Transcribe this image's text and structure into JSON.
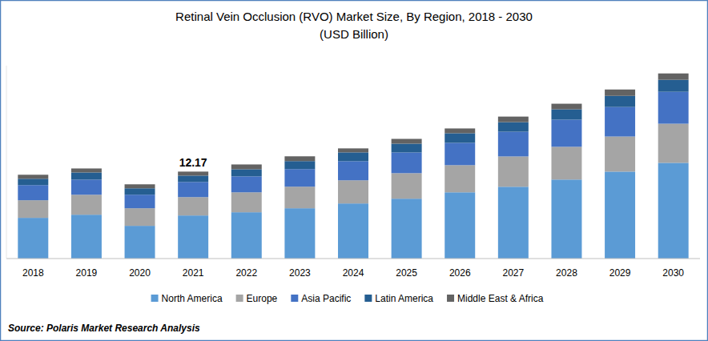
{
  "chart_data": {
    "type": "bar",
    "stacked": true,
    "title": "Retinal Vein Occlusion (RVO) Market Size, By Region, 2018 - 2030",
    "subtitle": "(USD Billion)",
    "source": "Source: Polaris Market Research Analysis",
    "categories": [
      "2018",
      "2019",
      "2020",
      "2021",
      "2022",
      "2023",
      "2024",
      "2025",
      "2026",
      "2027",
      "2028",
      "2029",
      "2030"
    ],
    "series": [
      {
        "name": "North America",
        "color": "#5b9bd5",
        "values": [
          5.7,
          6.14,
          4.58,
          6.03,
          6.48,
          7.04,
          7.71,
          8.38,
          9.27,
          10.05,
          11.06,
          12.17,
          13.4
        ]
      },
      {
        "name": "Europe",
        "color": "#a5a5a5",
        "values": [
          2.46,
          2.79,
          2.46,
          2.57,
          2.79,
          3.02,
          3.24,
          3.57,
          3.8,
          4.24,
          4.58,
          4.91,
          5.47
        ]
      },
      {
        "name": "Asia Pacific",
        "color": "#4472c4",
        "values": [
          2.12,
          2.12,
          1.9,
          2.12,
          2.23,
          2.46,
          2.68,
          2.9,
          3.13,
          3.46,
          3.8,
          4.13,
          4.47
        ]
      },
      {
        "name": "Latin America",
        "color": "#255e91",
        "values": [
          0.89,
          1.0,
          0.89,
          0.89,
          1.0,
          1.12,
          1.23,
          1.23,
          1.34,
          1.34,
          1.45,
          1.56,
          1.68
        ]
      },
      {
        "name": "Middle East & Africa",
        "color": "#636363",
        "values": [
          0.56,
          0.56,
          0.56,
          0.56,
          0.67,
          0.67,
          0.56,
          0.67,
          0.67,
          0.78,
          0.78,
          0.89,
          0.89
        ]
      }
    ],
    "annotations": [
      {
        "category": "2021",
        "text": "12.17",
        "value": 12.17
      }
    ],
    "ylim": [
      0,
      27
    ],
    "tick_labels": "x",
    "grid": false,
    "legend": "bottom"
  }
}
